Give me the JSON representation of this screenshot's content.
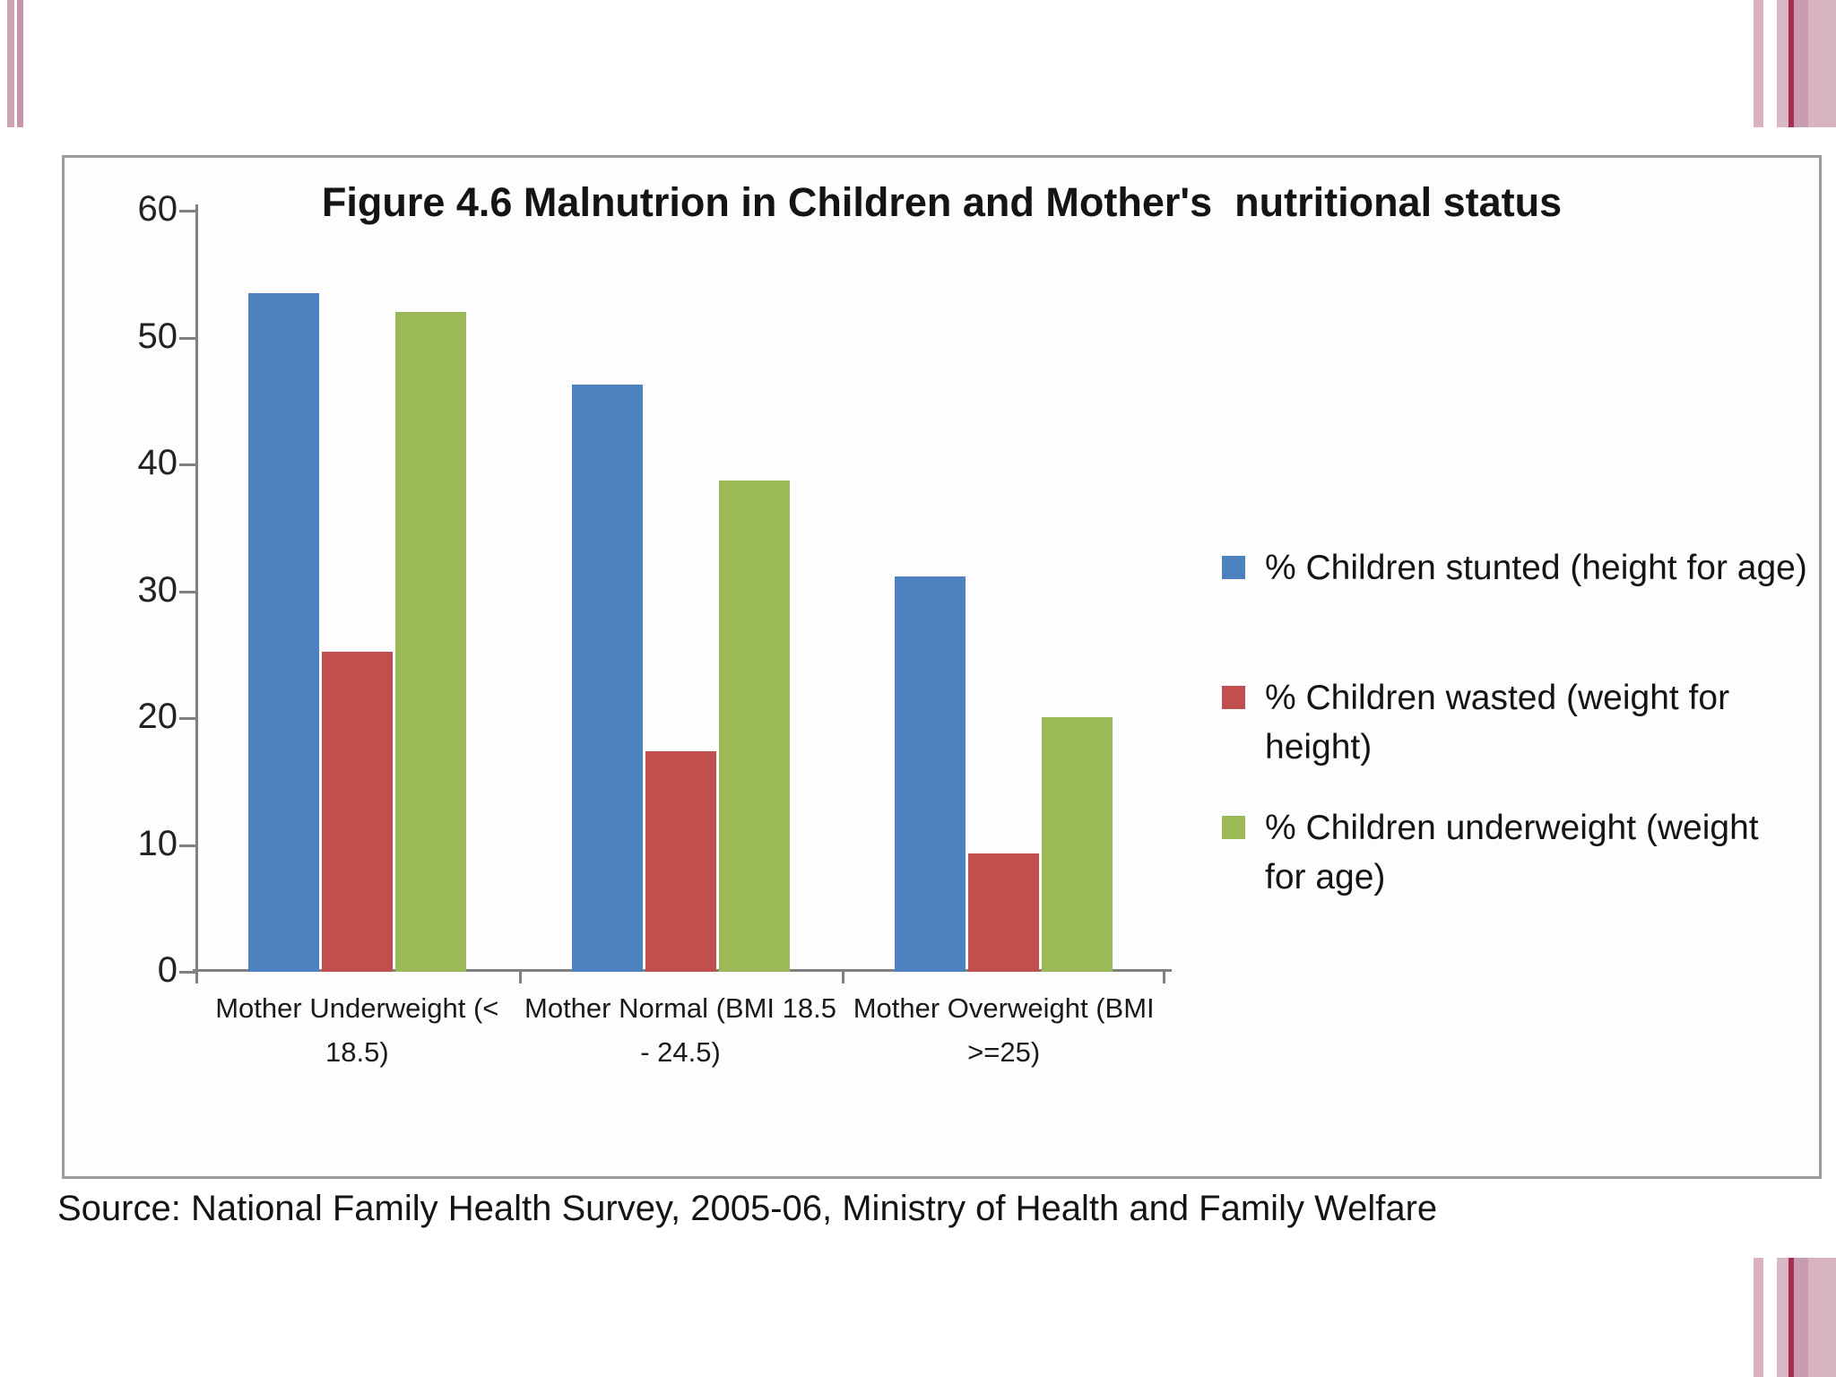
{
  "slide": {
    "source_line": "Source: National Family Health Survey, 2005-06, Ministry of Health and Family Welfare"
  },
  "theme": {
    "axis_color": "#808080",
    "panel_border": "#9c9c9c",
    "text_color": "#141414",
    "stripe_pink_light": "#d8b2c1",
    "stripe_pink_pale": "#dab7c5",
    "stripe_pink_mid": "#c79cb0",
    "stripe_pink_soft": "#cfa3b6",
    "stripe_crimson": "#a72c50"
  },
  "chart_data": {
    "type": "bar",
    "title": "Figure 4.6 Malnutrion in Children and Mother's  nutritional status",
    "xlabel": "",
    "ylabel": "",
    "ylim": [
      0,
      60
    ],
    "yticks": [
      0,
      10,
      20,
      30,
      40,
      50,
      60
    ],
    "grid": false,
    "legend_position": "right",
    "categories": [
      {
        "label": "Mother Underweight (< 18.5)",
        "lines": [
          "Mother Underweight (<",
          "18.5)"
        ]
      },
      {
        "label": "Mother Normal (BMI 18.5 - 24.5)",
        "lines": [
          "Mother Normal (BMI 18.5",
          "- 24.5)"
        ]
      },
      {
        "label": "Mother Overweight (BMI >=25)",
        "lines": [
          "Mother Overweight (BMI",
          ">=25)"
        ]
      }
    ],
    "series": [
      {
        "name": "% Children stunted (height for age)",
        "legend_lines": [
          "% Children stunted (height for age)"
        ],
        "color": "#4d80bf",
        "values": [
          53.5,
          46.3,
          31.2
        ]
      },
      {
        "name": "% Children wasted (weight for height)",
        "legend_lines": [
          "% Children wasted (weight for",
          "height)"
        ],
        "color": "#c14f4e",
        "values": [
          25.2,
          17.4,
          9.3
        ]
      },
      {
        "name": "% Children underweight (weight for age)",
        "legend_lines": [
          "% Children underweight (weight",
          "for age)"
        ],
        "color": "#9cb957",
        "values": [
          52.0,
          38.7,
          20.1
        ]
      }
    ]
  }
}
